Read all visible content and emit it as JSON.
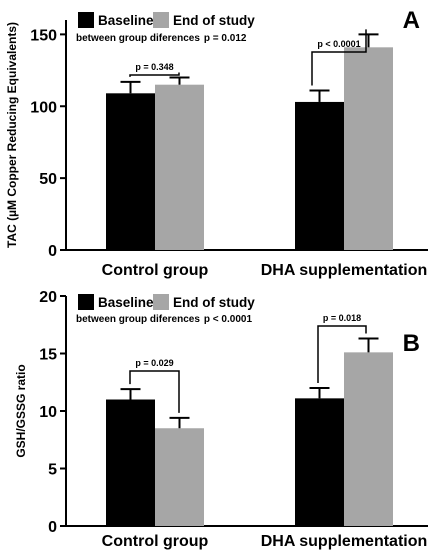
{
  "chart_data": [
    {
      "type": "bar",
      "panel_letter": "A",
      "categories": [
        "Control group",
        "DHA supplementation"
      ],
      "series": [
        {
          "name": "Baseline",
          "values": [
            109,
            103
          ],
          "errors": [
            8,
            8
          ],
          "color": "#000000"
        },
        {
          "name": "End of study",
          "values": [
            115,
            141
          ],
          "errors": [
            5,
            9
          ],
          "color": "#a6a6a6"
        }
      ],
      "ylabel": "TAC (µM Copper Reducing Equivalents)",
      "ylim": [
        0,
        160
      ],
      "yticks": [
        "0",
        "50",
        "100",
        "150"
      ],
      "annotation_text": "between group diferences",
      "annotation_p": "p = 0.012",
      "comparisons": [
        "p = 0.348",
        "p < 0.0001"
      ],
      "legend_position": "top-left",
      "grid": false
    },
    {
      "type": "bar",
      "panel_letter": "B",
      "categories": [
        "Control group",
        "DHA supplementation"
      ],
      "series": [
        {
          "name": "Baseline",
          "values": [
            11.0,
            11.1
          ],
          "errors": [
            0.9,
            0.9
          ],
          "color": "#000000"
        },
        {
          "name": "End of study",
          "values": [
            8.5,
            15.1
          ],
          "errors": [
            0.9,
            1.2
          ],
          "color": "#a6a6a6"
        }
      ],
      "ylabel": "GSH/GSSG ratio",
      "ylim": [
        0,
        20
      ],
      "yticks": [
        "0",
        "5",
        "10",
        "15",
        "20"
      ],
      "annotation_text": "between group diferences",
      "annotation_p": "p < 0.0001",
      "comparisons": [
        "p = 0.029",
        "p = 0.018"
      ],
      "legend_position": "top-left",
      "grid": false
    }
  ]
}
